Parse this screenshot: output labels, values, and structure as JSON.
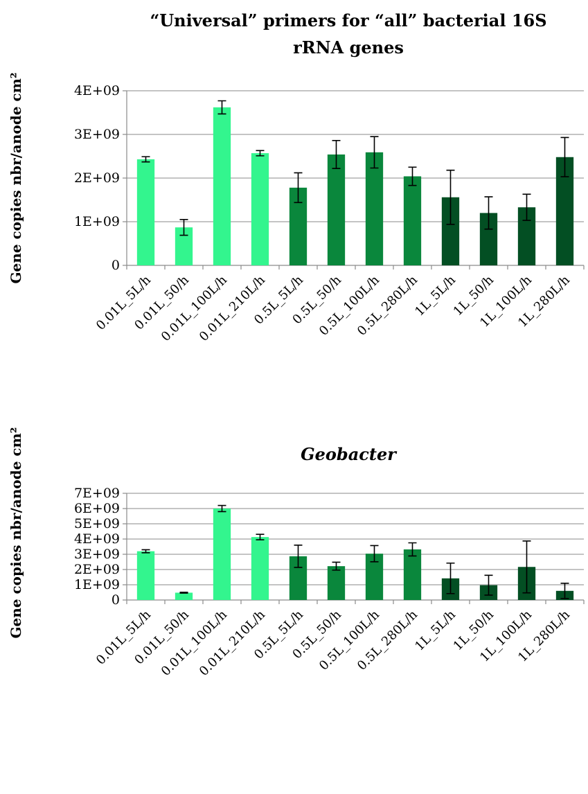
{
  "chart_data": [
    {
      "type": "bar",
      "title_lines": [
        "“Universal” primers for “all” bacterial 16S",
        "rRNA genes"
      ],
      "title_italic": false,
      "ylabel": "Gene copies nbr/anode cm²",
      "ylim": [
        0,
        4000000000
      ],
      "yticks": [
        0,
        1000000000,
        2000000000,
        3000000000,
        4000000000
      ],
      "ytick_labels": [
        "0",
        "1E+09",
        "2E+09",
        "3E+09",
        "4E+09"
      ],
      "grid": true,
      "categories": [
        "0.01L_5L/h",
        "0.01L_50/h",
        "0.01L_100L/h",
        "0.01L_210L/h",
        "0.5L_5L/h",
        "0.5L_50/h",
        "0.5L_100L/h",
        "0.5L_280L/h",
        "1L_5L/h",
        "1L_50/h",
        "1L_100L/h",
        "1L_280L/h"
      ],
      "values": [
        2430000000,
        870000000,
        3620000000,
        2570000000,
        1780000000,
        2540000000,
        2590000000,
        2040000000,
        1560000000,
        1200000000,
        1330000000,
        2480000000
      ],
      "errors": [
        60000000,
        180000000,
        150000000,
        60000000,
        340000000,
        320000000,
        360000000,
        210000000,
        620000000,
        370000000,
        300000000,
        450000000
      ],
      "bar_colors": [
        "#33f58e",
        "#33f58e",
        "#33f58e",
        "#33f58e",
        "#0a873c",
        "#0a873c",
        "#0a873c",
        "#0a873c",
        "#034f23",
        "#034f23",
        "#034f23",
        "#034f23"
      ]
    },
    {
      "type": "bar",
      "title_lines": [
        "Geobacter"
      ],
      "title_italic": true,
      "ylabel": "Gene copies nbr/anode cm²",
      "ylim": [
        0,
        7000000000
      ],
      "yticks": [
        0,
        1000000000,
        2000000000,
        3000000000,
        4000000000,
        5000000000,
        6000000000,
        7000000000
      ],
      "ytick_labels": [
        "0",
        "1E+09",
        "2E+09",
        "3E+09",
        "4E+09",
        "5E+09",
        "6E+09",
        "7E+09"
      ],
      "grid": true,
      "categories": [
        "0.01L_5L/h",
        "0.01L_50/h",
        "0.01L_100L/h",
        "0.01L_210L/h",
        "0.5L_5L/h",
        "0.5L_50/h",
        "0.5L_100L/h",
        "0.5L_280L/h",
        "1L_5L/h",
        "1L_50/h",
        "1L_100L/h",
        "1L_280L/h"
      ],
      "values": [
        3200000000,
        480000000,
        6000000000,
        4130000000,
        2870000000,
        2220000000,
        3040000000,
        3320000000,
        1420000000,
        970000000,
        2170000000,
        600000000
      ],
      "errors": [
        100000000,
        30000000,
        200000000,
        180000000,
        730000000,
        260000000,
        530000000,
        430000000,
        1000000000,
        650000000,
        1700000000,
        500000000
      ],
      "bar_colors": [
        "#33f58e",
        "#33f58e",
        "#33f58e",
        "#33f58e",
        "#0a873c",
        "#0a873c",
        "#0a873c",
        "#0a873c",
        "#034f23",
        "#034f23",
        "#034f23",
        "#034f23"
      ]
    }
  ]
}
